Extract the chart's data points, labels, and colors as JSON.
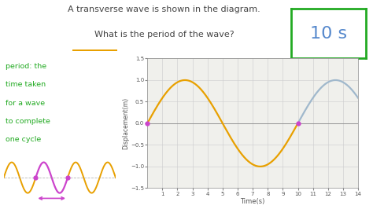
{
  "background_color": "#ffffff",
  "graph_bg": "#f0f0ec",
  "grid_color": "#cccccc",
  "title_line1": "A transverse wave is shown in the diagram.",
  "title_line2": "What is the period of the wave?",
  "xlabel": "Time(s)",
  "ylabel": "Displacement(m)",
  "xlim": [
    0,
    14
  ],
  "ylim": [
    -1.5,
    1.5
  ],
  "xticks": [
    1,
    2,
    3,
    4,
    5,
    6,
    7,
    8,
    9,
    10,
    11,
    12,
    13,
    14
  ],
  "yticks": [
    -1.5,
    -1,
    -0.5,
    0,
    0.5,
    1,
    1.5
  ],
  "orange_wave_color": "#e8a000",
  "blue_wave_color": "#a0b8cc",
  "dot_color": "#cc44cc",
  "answer_text": "10 s",
  "answer_box_color": "#22aa22",
  "answer_text_color": "#5588cc",
  "period_label_color": "#22aa22",
  "period_underline_color": "#e8a000",
  "text_color": "#444444",
  "wave_period": 10,
  "wave_amplitude": 1.0
}
